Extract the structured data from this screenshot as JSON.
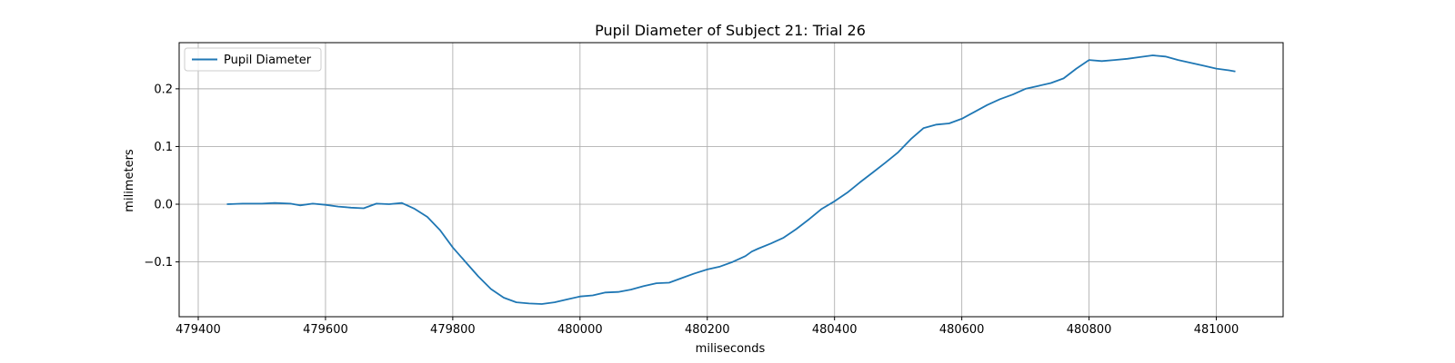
{
  "chart_data": {
    "type": "line",
    "title": "Pupil Diameter of Subject 21: Trial 26",
    "xlabel": "miliseconds",
    "ylabel": "milimeters",
    "xlim": [
      479370,
      481105
    ],
    "ylim": [
      -0.195,
      0.28
    ],
    "xticks": [
      479400,
      479600,
      479800,
      480000,
      480200,
      480400,
      480600,
      480800,
      481000
    ],
    "yticks": [
      -0.1,
      0.0,
      0.1,
      0.2
    ],
    "ytick_labels": [
      "−0.1",
      "0.0",
      "0.1",
      "0.2"
    ],
    "grid": true,
    "legend_position": "upper left",
    "colors": {
      "series": "#1f77b4",
      "grid": "#b0b0b0",
      "axes": "#000000"
    },
    "series": [
      {
        "name": "Pupil Diameter",
        "x": [
          479445,
          479470,
          479500,
          479520,
          479545,
          479560,
          479580,
          479600,
          479620,
          479640,
          479660,
          479680,
          479700,
          479720,
          479740,
          479760,
          479780,
          479800,
          479820,
          479840,
          479860,
          479880,
          479900,
          479920,
          479940,
          479960,
          479980,
          480000,
          480020,
          480040,
          480060,
          480080,
          480100,
          480120,
          480140,
          480160,
          480180,
          480200,
          480220,
          480240,
          480260,
          480270,
          480280,
          480300,
          480320,
          480340,
          480360,
          480380,
          480400,
          480420,
          480440,
          480460,
          480480,
          480500,
          480520,
          480540,
          480560,
          480580,
          480600,
          480620,
          480640,
          480660,
          480680,
          480700,
          480720,
          480740,
          480760,
          480780,
          480800,
          480820,
          480840,
          480860,
          480880,
          480900,
          480920,
          480940,
          480960,
          480980,
          481000,
          481020,
          481030
        ],
        "y": [
          0.0,
          0.001,
          0.001,
          0.002,
          0.001,
          -0.002,
          0.001,
          -0.001,
          -0.004,
          -0.006,
          -0.007,
          0.001,
          0.0,
          0.002,
          -0.008,
          -0.022,
          -0.045,
          -0.075,
          -0.1,
          -0.125,
          -0.147,
          -0.162,
          -0.17,
          -0.172,
          -0.173,
          -0.17,
          -0.165,
          -0.16,
          -0.158,
          -0.153,
          -0.152,
          -0.148,
          -0.142,
          -0.137,
          -0.136,
          -0.128,
          -0.12,
          -0.113,
          -0.108,
          -0.1,
          -0.09,
          -0.082,
          -0.077,
          -0.068,
          -0.058,
          -0.043,
          -0.026,
          -0.008,
          0.005,
          0.02,
          0.038,
          0.055,
          0.072,
          0.09,
          0.113,
          0.132,
          0.138,
          0.14,
          0.148,
          0.16,
          0.172,
          0.182,
          0.19,
          0.2,
          0.205,
          0.21,
          0.218,
          0.235,
          0.25,
          0.248,
          0.25,
          0.252,
          0.255,
          0.258,
          0.256,
          0.25,
          0.245,
          0.24,
          0.235,
          0.232,
          0.23
        ]
      }
    ]
  }
}
